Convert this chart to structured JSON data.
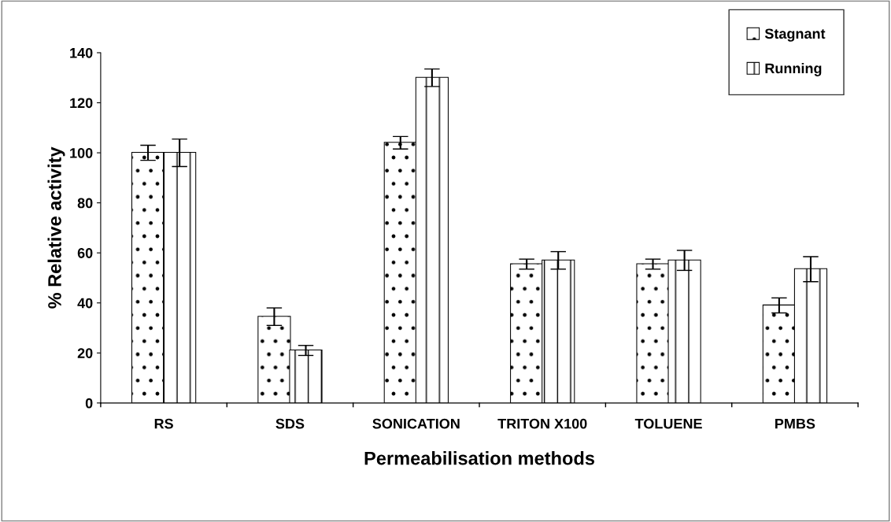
{
  "chart_data": {
    "type": "bar",
    "xlabel": "Permeabilisation methods",
    "ylabel": "% Relative activity",
    "categories": [
      "RS",
      "SDS",
      "SONICATION",
      "TRITON X100",
      "TOLUENE",
      "PMBS"
    ],
    "series": [
      {
        "name": "Stagnant",
        "color": "#ffffff",
        "values": [
          100,
          34.5,
          104,
          55.5,
          55.5,
          39
        ],
        "errors": [
          3,
          3.5,
          2.5,
          2,
          2,
          3
        ]
      },
      {
        "name": "Running",
        "color": "#ffffff",
        "values": [
          100,
          21,
          130,
          57,
          57,
          53.5
        ],
        "errors": [
          5.5,
          2,
          3.5,
          3.5,
          4,
          5
        ]
      }
    ],
    "ylim": [
      0,
      140
    ],
    "yticks": [
      0,
      20,
      40,
      60,
      80,
      100,
      120,
      140
    ],
    "grid": false,
    "legend": "top right"
  }
}
